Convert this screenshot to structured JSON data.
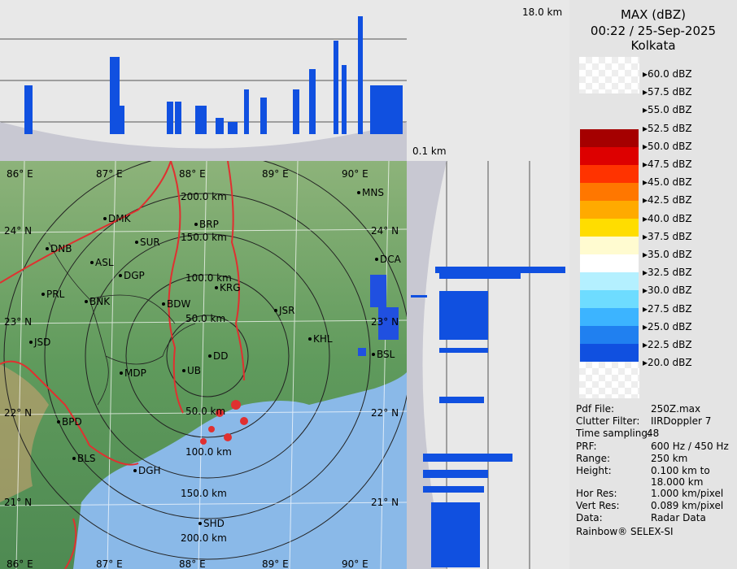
{
  "title": {
    "product": "MAX (dBZ)",
    "datetime": "00:22 / 25-Sep-2025",
    "station": "Kolkata"
  },
  "height_labels": {
    "top": "18.0 km",
    "bottom": "0.1 km"
  },
  "color_scale": {
    "unit": "dBZ",
    "levels": [
      {
        "label": "60.0 dBZ",
        "color": "#ffffff"
      },
      {
        "label": "57.5 dBZ",
        "color": "#ffffff"
      },
      {
        "label": "55.0 dBZ",
        "color": "#a50000"
      },
      {
        "label": "52.5 dBZ",
        "color": "#dd0000"
      },
      {
        "label": "50.0 dBZ",
        "color": "#ff3300"
      },
      {
        "label": "47.5 dBZ",
        "color": "#ff7700"
      },
      {
        "label": "45.0 dBZ",
        "color": "#ffaa00"
      },
      {
        "label": "42.5 dBZ",
        "color": "#ffdd00"
      },
      {
        "label": "40.0 dBZ",
        "color": "#fffbd0"
      },
      {
        "label": "37.5 dBZ",
        "color": "#ffffff"
      },
      {
        "label": "35.0 dBZ",
        "color": "#b4f0ff"
      },
      {
        "label": "32.5 dBZ",
        "color": "#6edcff"
      },
      {
        "label": "30.0 dBZ",
        "color": "#3cb4ff"
      },
      {
        "label": "27.5 dBZ",
        "color": "#2080f0"
      },
      {
        "label": "25.0 dBZ",
        "color": "#1050e0"
      },
      {
        "label": "22.5 dBZ",
        "color": "#0020c8"
      },
      {
        "label": "20.0 dBZ",
        "color": "#001090"
      }
    ]
  },
  "metadata": [
    {
      "key": "Pdf File:",
      "value": "250Z.max"
    },
    {
      "key": "Clutter Filter:",
      "value": "IIRDoppler 7"
    },
    {
      "key": "Time sampling:",
      "value": "48"
    },
    {
      "key": "PRF:",
      "value": "600 Hz / 450 Hz"
    },
    {
      "key": "Range:",
      "value": "250 km"
    },
    {
      "key": "Height:",
      "value": "0.100 km to 18.000 km"
    },
    {
      "key": "Hor Res:",
      "value": "1.000 km/pixel"
    },
    {
      "key": "Vert Res:",
      "value": "0.089 km/pixel"
    },
    {
      "key": "Data:",
      "value": "Radar Data"
    }
  ],
  "footer": "Rainbow® SELEX-SI",
  "map": {
    "range_labels": [
      "50.0 km",
      "100.0 km",
      "150.0 km",
      "200.0 km",
      "50.0 km",
      "100.0 km",
      "150.0 km",
      "200.0 km"
    ],
    "lon_labels": [
      "86° E",
      "87° E",
      "88° E",
      "89° E",
      "90° E"
    ],
    "lat_labels": [
      "24° N",
      "23° N",
      "22° N",
      "21° N"
    ],
    "stations": [
      "MNS",
      "DMK",
      "BRP",
      "SUR",
      "DNB",
      "ASL",
      "DGP",
      "DCA",
      "KRG",
      "PRL",
      "BNK",
      "BDW",
      "JSR",
      "KHL",
      "JSD",
      "DD",
      "BSL",
      "MDP",
      "UB",
      "BPD",
      "DGH",
      "BLS",
      "SHD"
    ]
  },
  "colors": {
    "land": "#5e9a5e",
    "sea": "#8ab9e8",
    "rings": "#222222",
    "borders": "#e03030"
  }
}
